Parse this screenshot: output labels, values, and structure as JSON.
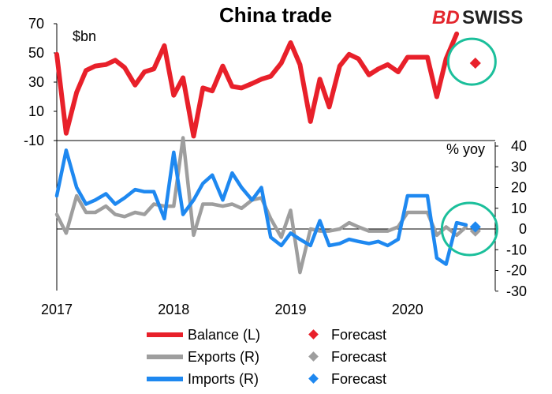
{
  "brand": {
    "part1": "BD",
    "part2": "SWISS",
    "red": "#e3262d",
    "dark": "#222222"
  },
  "chart_data": {
    "type": "line",
    "title": "China trade",
    "left_axis_unit": "$bn",
    "right_axis_unit": "% yoy",
    "left_axis": {
      "ticks": [
        "70",
        "50",
        "30",
        "10",
        "-10"
      ],
      "range": [
        -10,
        70
      ]
    },
    "right_axis": {
      "ticks": [
        "40",
        "30",
        "20",
        "10",
        "0",
        "-10",
        "-20",
        "-30"
      ],
      "range": [
        -30,
        40
      ]
    },
    "x_ticks": [
      "2017",
      "2018",
      "2019",
      "2020"
    ],
    "x_range": [
      2017.0,
      2020.75
    ],
    "grid": false,
    "legend_position": "bottom",
    "series": [
      {
        "name": "Balance (L)",
        "forecast_label": "Forecast",
        "color": "#e8202a",
        "axis": "left",
        "x": [
          2017.0,
          2017.08,
          2017.17,
          2017.25,
          2017.33,
          2017.42,
          2017.5,
          2017.58,
          2017.67,
          2017.75,
          2017.83,
          2017.92,
          2018.0,
          2018.08,
          2018.17,
          2018.25,
          2018.33,
          2018.42,
          2018.5,
          2018.58,
          2018.67,
          2018.75,
          2018.83,
          2018.92,
          2019.0,
          2019.08,
          2019.17,
          2019.25,
          2019.33,
          2019.42,
          2019.5,
          2019.58,
          2019.67,
          2019.75,
          2019.83,
          2019.92,
          2020.0,
          2020.08,
          2020.17,
          2020.25,
          2020.33,
          2020.42
        ],
        "values": [
          49,
          -5,
          23,
          38,
          41,
          42,
          45,
          40,
          28,
          37,
          39,
          55,
          21,
          33,
          -7,
          26,
          24,
          41,
          27,
          26,
          29,
          32,
          34,
          43,
          57,
          42,
          3,
          32,
          13,
          41,
          49,
          46,
          35,
          39,
          42,
          37,
          47,
          47,
          47,
          20,
          46,
          63
        ],
        "forecast": {
          "x": 2020.58,
          "value": 43
        }
      },
      {
        "name": "Exports (R)",
        "forecast_label": "Forecast",
        "color": "#9e9e9e",
        "axis": "right",
        "x": [
          2017.0,
          2017.08,
          2017.17,
          2017.25,
          2017.33,
          2017.42,
          2017.5,
          2017.58,
          2017.67,
          2017.75,
          2017.83,
          2017.92,
          2018.0,
          2018.08,
          2018.17,
          2018.25,
          2018.33,
          2018.42,
          2018.5,
          2018.58,
          2018.67,
          2018.75,
          2018.83,
          2018.92,
          2019.0,
          2019.08,
          2019.17,
          2019.25,
          2019.33,
          2019.42,
          2019.5,
          2019.58,
          2019.67,
          2019.75,
          2019.83,
          2019.92,
          2020.0,
          2020.08,
          2020.17,
          2020.25,
          2020.33,
          2020.42,
          2020.5
        ],
        "values": [
          7,
          -2,
          16,
          8,
          8,
          11,
          7,
          6,
          8,
          7,
          12,
          11,
          11,
          44,
          -3,
          12,
          12,
          11,
          12,
          10,
          14,
          15,
          5,
          -4,
          9,
          -21,
          0,
          -1,
          -1,
          0,
          3,
          1,
          -1,
          -1,
          -1,
          1,
          8,
          8,
          8,
          -3,
          1,
          -3,
          1
        ],
        "forecast": {
          "x": 2020.58,
          "value": -1
        }
      },
      {
        "name": "Imports (R)",
        "forecast_label": "Forecast",
        "color": "#1e88f0",
        "axis": "right",
        "x": [
          2017.0,
          2017.08,
          2017.17,
          2017.25,
          2017.33,
          2017.42,
          2017.5,
          2017.58,
          2017.67,
          2017.75,
          2017.83,
          2017.92,
          2018.0,
          2018.08,
          2018.17,
          2018.25,
          2018.33,
          2018.42,
          2018.5,
          2018.58,
          2018.67,
          2018.75,
          2018.83,
          2018.92,
          2019.0,
          2019.08,
          2019.17,
          2019.25,
          2019.33,
          2019.42,
          2019.5,
          2019.58,
          2019.67,
          2019.75,
          2019.83,
          2019.92,
          2020.0,
          2020.08,
          2020.17,
          2020.25,
          2020.33,
          2020.42,
          2020.5
        ],
        "values": [
          16,
          38,
          20,
          12,
          14,
          17,
          12,
          15,
          19,
          18,
          18,
          5,
          37,
          7,
          14,
          22,
          26,
          14,
          27,
          20,
          14,
          20,
          -4,
          -8,
          -2,
          -5,
          -8,
          4,
          -8,
          -7,
          -5,
          -6,
          -7,
          -6,
          -8,
          -5,
          16,
          16,
          16,
          -14,
          -17,
          3,
          2
        ],
        "forecast": {
          "x": 2020.58,
          "value": 1
        }
      }
    ]
  },
  "highlights": [
    {
      "name": "balance-forecast-highlight",
      "x": 2020.55,
      "axis": "left",
      "value": 44,
      "color": "#1bbf9b"
    },
    {
      "name": "trade-forecast-highlight",
      "x": 2020.53,
      "axis": "right",
      "value": 0,
      "color": "#1bbf9b"
    }
  ]
}
